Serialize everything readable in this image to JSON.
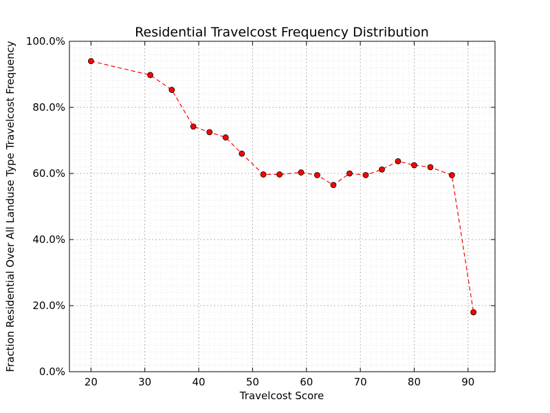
{
  "chart_data": {
    "type": "line",
    "title": "Residential Travelcost Frequency Distribution",
    "xlabel": "Travelcost Score",
    "ylabel": "Fraction Residential Over All Landuse Type Travelcost Frequency",
    "xlim": [
      16,
      95
    ],
    "ylim": [
      0,
      1
    ],
    "x_ticks": [
      20,
      30,
      40,
      50,
      60,
      70,
      80,
      90
    ],
    "y_ticks": [
      0,
      0.2,
      0.4,
      0.6,
      0.8,
      1.0
    ],
    "y_tick_labels": [
      "0.0%",
      "20.0%",
      "40.0%",
      "60.0%",
      "80.0%",
      "100.0%"
    ],
    "grid": true,
    "series": [
      {
        "x": [
          20,
          31,
          35,
          39,
          42,
          45,
          48,
          52,
          55,
          59,
          62,
          65,
          68,
          71,
          74,
          77,
          80,
          83,
          87,
          91
        ],
        "values": [
          0.94,
          0.898,
          0.853,
          0.742,
          0.725,
          0.709,
          0.66,
          0.597,
          0.597,
          0.603,
          0.595,
          0.565,
          0.6,
          0.595,
          0.612,
          0.637,
          0.625,
          0.619,
          0.595,
          0.18
        ],
        "line_style": "dashed",
        "line_color": "#ff0000",
        "marker": "circle",
        "marker_color": "#ff0000"
      }
    ]
  }
}
